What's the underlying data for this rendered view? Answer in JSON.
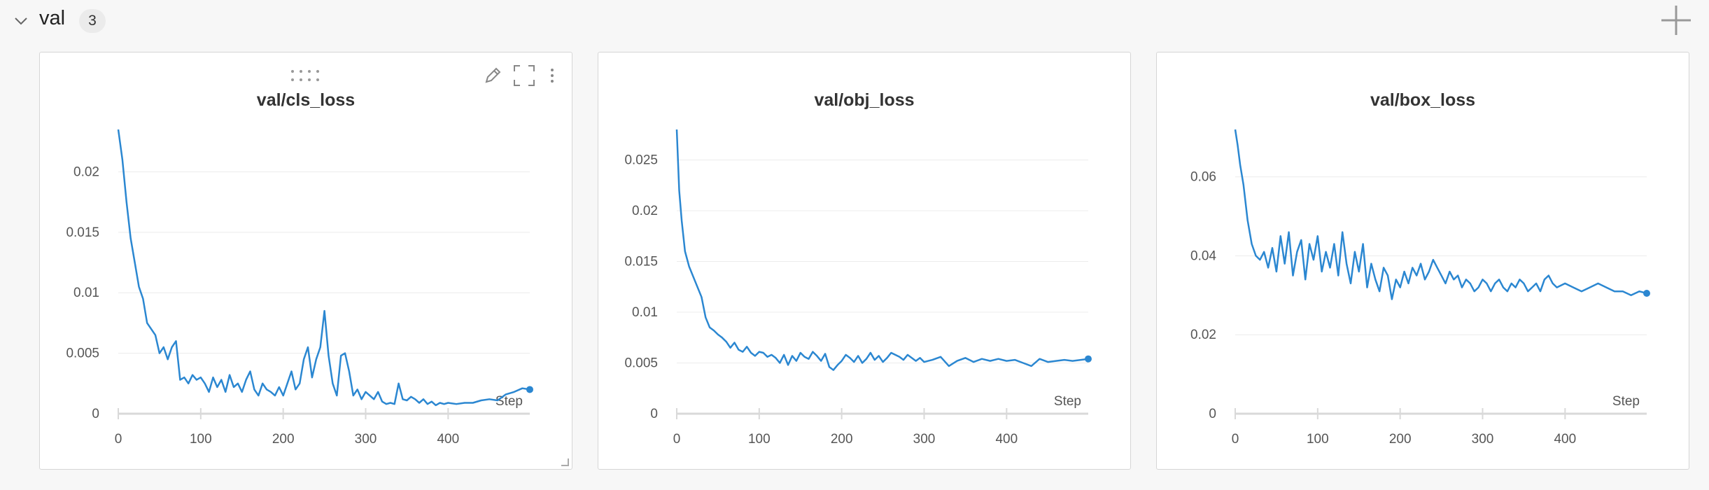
{
  "section": {
    "title": "val",
    "count": "3"
  },
  "icons": {
    "collapse": "chevron-down-icon",
    "add": "plus-icon",
    "drag": "drag-handle-icon",
    "edit": "pencil-icon",
    "fullscreen": "fullscreen-icon",
    "menu": "more-vertical-icon"
  },
  "colors": {
    "line": "#2b87d1",
    "grid": "#ececec",
    "axis": "#d9d9d9",
    "tick_text": "#555555"
  },
  "panels": [
    {
      "title": "val/cls_loss",
      "x_axis_label": "Step",
      "x_ticks": [
        "0",
        "100",
        "200",
        "300",
        "400"
      ],
      "y_ticks": [
        "0",
        "0.005",
        "0.01",
        "0.015",
        "0.02"
      ]
    },
    {
      "title": "val/obj_loss",
      "x_axis_label": "Step",
      "x_ticks": [
        "0",
        "100",
        "200",
        "300",
        "400"
      ],
      "y_ticks": [
        "0",
        "0.005",
        "0.01",
        "0.015",
        "0.02",
        "0.025"
      ]
    },
    {
      "title": "val/box_loss",
      "x_axis_label": "Step",
      "x_ticks": [
        "0",
        "100",
        "200",
        "300",
        "400"
      ],
      "y_ticks": [
        "0",
        "0.02",
        "0.04",
        "0.06"
      ]
    }
  ],
  "chart_data": [
    {
      "type": "line",
      "title": "val/cls_loss",
      "xlabel": "Step",
      "ylabel": "",
      "xlim": [
        0,
        499
      ],
      "ylim": [
        0,
        0.0235
      ],
      "grid": true,
      "series": [
        {
          "x": [
            0,
            5,
            10,
            15,
            20,
            25,
            30,
            35,
            40,
            45,
            50,
            55,
            60,
            65,
            70,
            75,
            80,
            85,
            90,
            95,
            100,
            105,
            110,
            115,
            120,
            125,
            130,
            135,
            140,
            145,
            150,
            155,
            160,
            165,
            170,
            175,
            180,
            185,
            190,
            195,
            200,
            205,
            210,
            215,
            220,
            225,
            230,
            235,
            240,
            245,
            250,
            255,
            260,
            265,
            270,
            275,
            280,
            285,
            290,
            295,
            300,
            305,
            310,
            315,
            320,
            325,
            330,
            335,
            340,
            345,
            350,
            355,
            360,
            365,
            370,
            375,
            380,
            385,
            390,
            395,
            400,
            410,
            420,
            430,
            440,
            450,
            460,
            470,
            480,
            490,
            499
          ],
          "y": [
            0.0235,
            0.021,
            0.0175,
            0.0145,
            0.0125,
            0.0105,
            0.0095,
            0.0075,
            0.007,
            0.0065,
            0.005,
            0.0055,
            0.0045,
            0.0055,
            0.006,
            0.0028,
            0.003,
            0.0025,
            0.0032,
            0.0028,
            0.003,
            0.0025,
            0.0018,
            0.003,
            0.0022,
            0.0028,
            0.0018,
            0.0032,
            0.0022,
            0.0025,
            0.0018,
            0.0028,
            0.0035,
            0.002,
            0.0015,
            0.0025,
            0.002,
            0.0018,
            0.0015,
            0.0022,
            0.0015,
            0.0025,
            0.0035,
            0.002,
            0.0025,
            0.0045,
            0.0055,
            0.003,
            0.0045,
            0.0055,
            0.0085,
            0.0048,
            0.0025,
            0.0015,
            0.0048,
            0.005,
            0.0035,
            0.0015,
            0.002,
            0.0012,
            0.0018,
            0.0015,
            0.0012,
            0.0018,
            0.001,
            0.0008,
            0.0009,
            0.0008,
            0.0025,
            0.0012,
            0.0011,
            0.0014,
            0.0012,
            0.0009,
            0.0012,
            0.0008,
            0.001,
            0.0007,
            0.0009,
            0.0008,
            0.0009,
            0.0008,
            0.0009,
            0.0009,
            0.0011,
            0.0012,
            0.0011,
            0.0016,
            0.0018,
            0.0021,
            0.002
          ]
        }
      ]
    },
    {
      "type": "line",
      "title": "val/obj_loss",
      "xlabel": "Step",
      "ylabel": "",
      "xlim": [
        0,
        499
      ],
      "ylim": [
        0,
        0.028
      ],
      "grid": true,
      "series": [
        {
          "x": [
            0,
            3,
            6,
            10,
            15,
            20,
            25,
            30,
            35,
            40,
            45,
            50,
            55,
            60,
            65,
            70,
            75,
            80,
            85,
            90,
            95,
            100,
            105,
            110,
            115,
            120,
            125,
            130,
            135,
            140,
            145,
            150,
            155,
            160,
            165,
            170,
            175,
            180,
            185,
            190,
            195,
            200,
            205,
            210,
            215,
            220,
            225,
            230,
            235,
            240,
            245,
            250,
            255,
            260,
            265,
            270,
            275,
            280,
            285,
            290,
            295,
            300,
            310,
            320,
            330,
            340,
            350,
            360,
            370,
            380,
            390,
            400,
            410,
            420,
            430,
            440,
            450,
            460,
            470,
            480,
            490,
            499
          ],
          "y": [
            0.028,
            0.022,
            0.019,
            0.016,
            0.0145,
            0.0135,
            0.0125,
            0.0115,
            0.0095,
            0.0085,
            0.0082,
            0.0078,
            0.0075,
            0.0071,
            0.0065,
            0.007,
            0.0063,
            0.0061,
            0.0066,
            0.006,
            0.0057,
            0.0061,
            0.006,
            0.0056,
            0.0058,
            0.0055,
            0.005,
            0.0058,
            0.0048,
            0.0057,
            0.0052,
            0.006,
            0.0056,
            0.0054,
            0.0061,
            0.0057,
            0.0052,
            0.0059,
            0.0046,
            0.0043,
            0.0048,
            0.0052,
            0.0058,
            0.0055,
            0.0051,
            0.0057,
            0.005,
            0.0054,
            0.006,
            0.0053,
            0.0057,
            0.0051,
            0.0055,
            0.006,
            0.0058,
            0.0056,
            0.0053,
            0.0058,
            0.0055,
            0.0052,
            0.0055,
            0.0051,
            0.0053,
            0.0056,
            0.0047,
            0.0052,
            0.0055,
            0.0051,
            0.0054,
            0.0052,
            0.0054,
            0.0052,
            0.0053,
            0.005,
            0.0047,
            0.0054,
            0.0051,
            0.0052,
            0.0053,
            0.0052,
            0.0053,
            0.0054
          ]
        }
      ]
    },
    {
      "type": "line",
      "title": "val/box_loss",
      "xlabel": "Step",
      "ylabel": "",
      "xlim": [
        0,
        499
      ],
      "ylim": [
        0,
        0.072
      ],
      "grid": true,
      "series": [
        {
          "x": [
            0,
            3,
            6,
            10,
            15,
            20,
            25,
            30,
            35,
            40,
            45,
            50,
            55,
            60,
            65,
            70,
            75,
            80,
            85,
            90,
            95,
            100,
            105,
            110,
            115,
            120,
            125,
            130,
            135,
            140,
            145,
            150,
            155,
            160,
            165,
            170,
            175,
            180,
            185,
            190,
            195,
            200,
            205,
            210,
            215,
            220,
            225,
            230,
            235,
            240,
            245,
            250,
            255,
            260,
            265,
            270,
            275,
            280,
            285,
            290,
            295,
            300,
            305,
            310,
            315,
            320,
            325,
            330,
            335,
            340,
            345,
            350,
            355,
            360,
            365,
            370,
            375,
            380,
            385,
            390,
            400,
            410,
            420,
            430,
            440,
            450,
            460,
            470,
            480,
            490,
            499
          ],
          "y": [
            0.072,
            0.068,
            0.063,
            0.058,
            0.049,
            0.043,
            0.04,
            0.039,
            0.041,
            0.037,
            0.042,
            0.036,
            0.045,
            0.038,
            0.046,
            0.035,
            0.041,
            0.044,
            0.034,
            0.043,
            0.039,
            0.045,
            0.036,
            0.041,
            0.037,
            0.043,
            0.035,
            0.046,
            0.038,
            0.033,
            0.041,
            0.036,
            0.043,
            0.032,
            0.038,
            0.034,
            0.031,
            0.037,
            0.035,
            0.029,
            0.034,
            0.032,
            0.036,
            0.033,
            0.037,
            0.035,
            0.038,
            0.034,
            0.036,
            0.039,
            0.037,
            0.035,
            0.033,
            0.036,
            0.034,
            0.035,
            0.032,
            0.034,
            0.033,
            0.031,
            0.032,
            0.034,
            0.033,
            0.031,
            0.033,
            0.034,
            0.032,
            0.031,
            0.033,
            0.032,
            0.034,
            0.033,
            0.031,
            0.032,
            0.033,
            0.031,
            0.034,
            0.035,
            0.033,
            0.032,
            0.033,
            0.032,
            0.031,
            0.032,
            0.033,
            0.032,
            0.031,
            0.031,
            0.03,
            0.031,
            0.0305
          ]
        }
      ]
    }
  ]
}
